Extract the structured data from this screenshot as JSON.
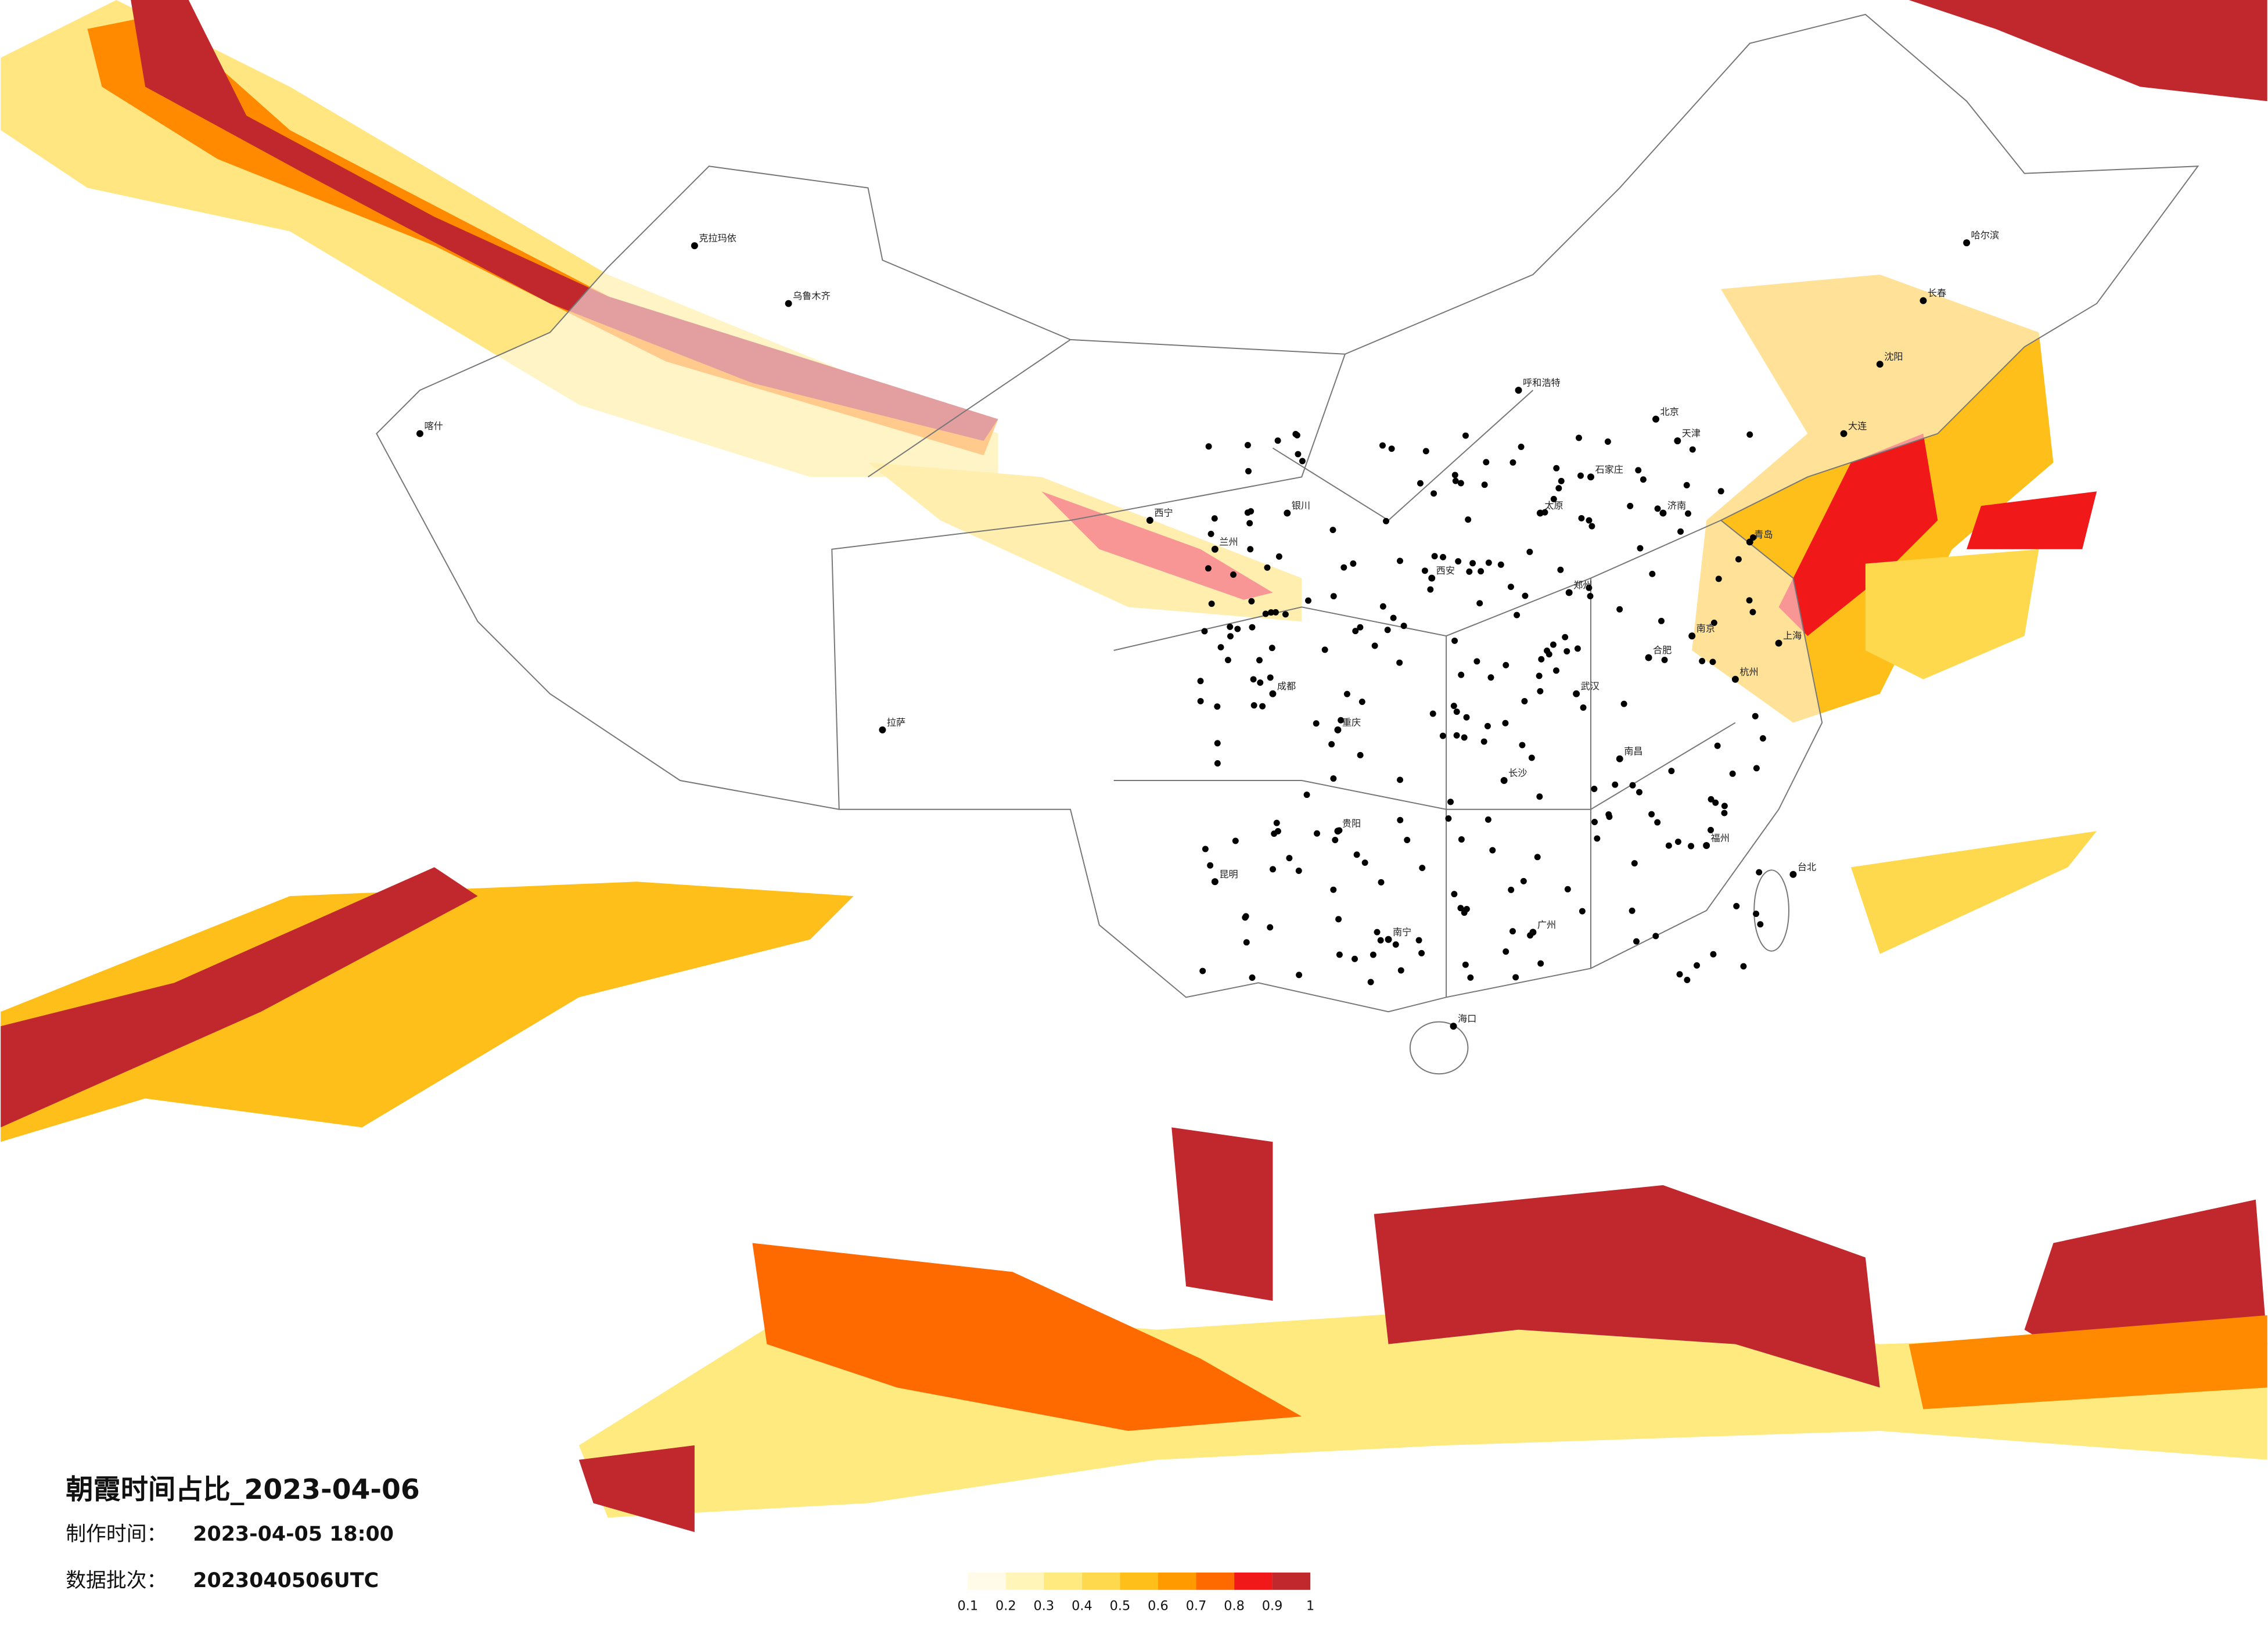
{
  "header": {
    "title": "朝霞时间占比_2023-04-06",
    "made_label": "制作时间：",
    "made_value": "2023-04-05 18:00",
    "batch_label": "数据批次：",
    "batch_value": "2023040506UTC"
  },
  "legend": {
    "colors": [
      "#fffbe8",
      "#fff5b8",
      "#ffea80",
      "#ffd94d",
      "#ffbf1a",
      "#ff9a00",
      "#ff6a00",
      "#f01818",
      "#c0282e"
    ],
    "ticks": [
      0.1,
      0.2,
      0.3,
      0.4,
      0.5,
      0.6,
      0.7,
      0.8,
      0.9,
      1
    ]
  },
  "cities": [
    "哈尔滨",
    "长春",
    "沈阳",
    "大连",
    "北京",
    "天津",
    "石家庄",
    "太原",
    "呼和浩特",
    "济南",
    "青岛",
    "郑州",
    "西安",
    "兰州",
    "西宁",
    "银川",
    "乌鲁木齐",
    "克拉玛依",
    "喀什",
    "拉萨",
    "成都",
    "重庆",
    "贵阳",
    "昆明",
    "南宁",
    "广州",
    "长沙",
    "武汉",
    "南昌",
    "福州",
    "杭州",
    "上海",
    "南京",
    "合肥",
    "海口",
    "台北"
  ]
}
